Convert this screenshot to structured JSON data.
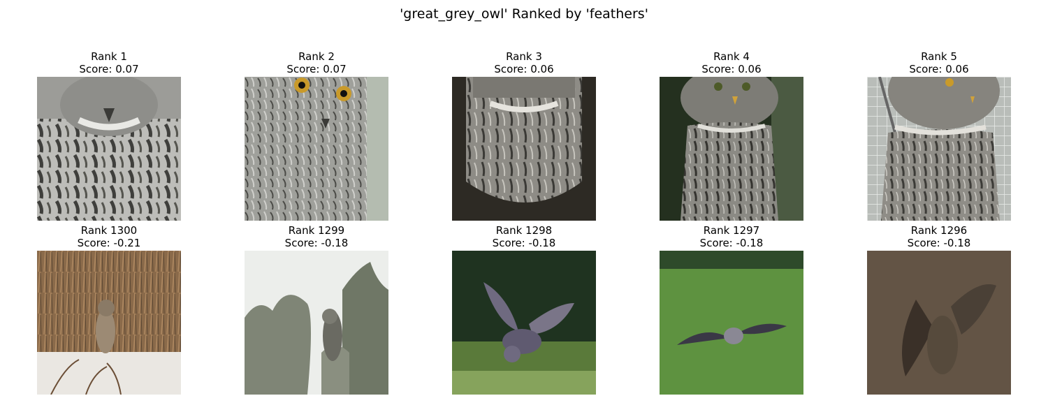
{
  "figure": {
    "title": "'great_grey_owl' Ranked by 'feathers'"
  },
  "panels": [
    {
      "rank_label": "Rank 1",
      "score_label": "Score: 0.07",
      "scene": "feathers-closeup",
      "palette": {
        "bg": "#8c8c88",
        "main": "#b9b9b5",
        "dark": "#3f3f3c"
      }
    },
    {
      "rank_label": "Rank 2",
      "score_label": "Score: 0.07",
      "scene": "face-eyes",
      "palette": {
        "bg": "#7d7e79",
        "main": "#a7a8a3",
        "dark": "#3a3a37"
      }
    },
    {
      "rank_label": "Rank 3",
      "score_label": "Score: 0.06",
      "scene": "feathers-dark-bg",
      "palette": {
        "bg": "#2d2a24",
        "main": "#8e8c86",
        "dark": "#3b3a36"
      }
    },
    {
      "rank_label": "Rank 4",
      "score_label": "Score: 0.06",
      "scene": "owl-standing",
      "palette": {
        "bg": "#24301f",
        "main": "#8b8a84",
        "dark": "#34332f"
      }
    },
    {
      "rank_label": "Rank 5",
      "score_label": "Score: 0.06",
      "scene": "owl-fence",
      "palette": {
        "bg": "#b9bdb9",
        "main": "#8f8d87",
        "dark": "#3c3b37"
      }
    },
    {
      "rank_label": "Rank 1300",
      "score_label": "Score: -0.21",
      "scene": "owl-dry-grass",
      "palette": {
        "bg": "#8a6a4a",
        "main": "#9c8a74",
        "dark": "#5a4632"
      }
    },
    {
      "rank_label": "Rank 1299",
      "score_label": "Score: -0.18",
      "scene": "owl-trees",
      "palette": {
        "bg": "#e9ebe8",
        "main": "#7f8576",
        "dark": "#535b4a"
      }
    },
    {
      "rank_label": "Rank 1298",
      "score_label": "Score: -0.18",
      "scene": "owl-flying-dark",
      "palette": {
        "bg": "#1f3320",
        "main": "#6f6a80",
        "dark": "#2f2d3a"
      }
    },
    {
      "rank_label": "Rank 1297",
      "score_label": "Score: -0.18",
      "scene": "owl-flying-grass",
      "palette": {
        "bg": "#5a8a3c",
        "main": "#6c6b78",
        "dark": "#2e2e36"
      }
    },
    {
      "rank_label": "Rank 1296",
      "score_label": "Score: -0.18",
      "scene": "owl-flying-brown",
      "palette": {
        "bg": "#5c4e40",
        "main": "#4a4036",
        "dark": "#2a241e"
      }
    }
  ]
}
